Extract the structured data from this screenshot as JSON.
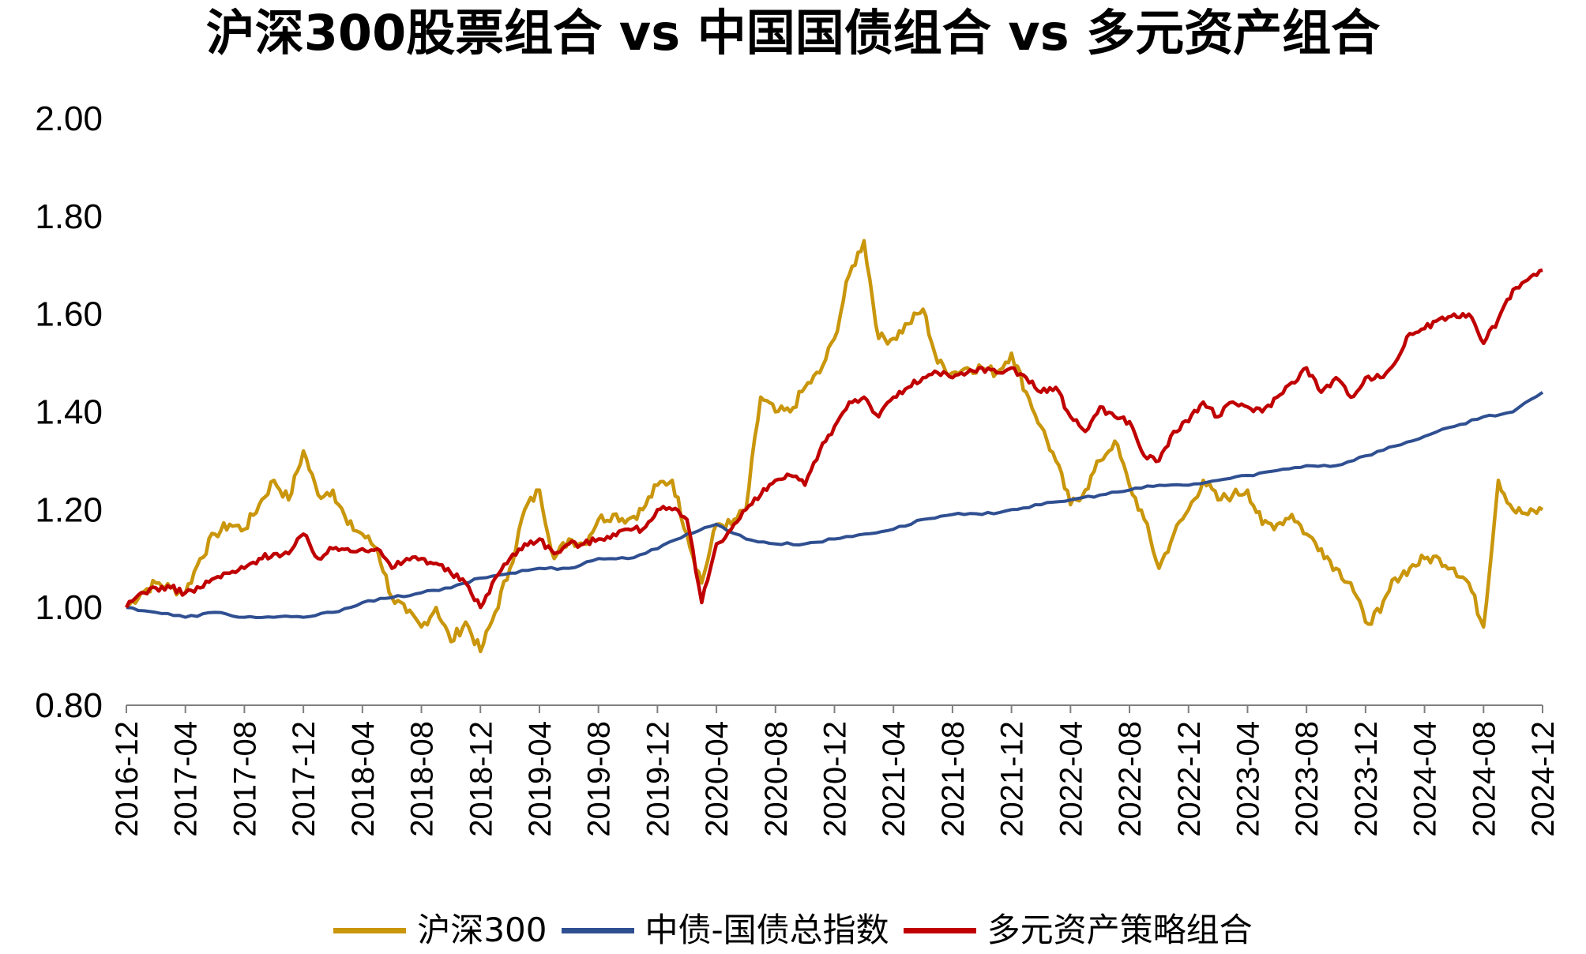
{
  "title": "沪深300股票组合 vs 中国国债组合 vs 多元资产组合",
  "chart_data": {
    "type": "line",
    "title": "沪深300股票组合 vs 中国国债组合 vs 多元资产组合",
    "xlabel": "",
    "ylabel": "",
    "ylim": [
      0.8,
      2.0
    ],
    "yticks": [
      "0.80",
      "1.00",
      "1.20",
      "1.40",
      "1.60",
      "1.80",
      "2.00"
    ],
    "x_ticks": [
      "2016-12",
      "2017-04",
      "2017-08",
      "2017-12",
      "2018-04",
      "2018-08",
      "2018-12",
      "2019-04",
      "2019-08",
      "2019-12",
      "2020-04",
      "2020-08",
      "2020-12",
      "2021-04",
      "2021-08",
      "2021-12",
      "2022-04",
      "2022-08",
      "2022-12",
      "2023-04",
      "2023-08",
      "2023-12",
      "2024-04",
      "2024-08",
      "2024-12"
    ],
    "grid": false,
    "legend_position": "bottom",
    "series": [
      {
        "name": "沪深300",
        "color": "#C9960C",
        "x": [
          "2016-12",
          "2017-01",
          "2017-02",
          "2017-03",
          "2017-04",
          "2017-05",
          "2017-06",
          "2017-07",
          "2017-08",
          "2017-09",
          "2017-10",
          "2017-11",
          "2017-12",
          "2018-01",
          "2018-02",
          "2018-03",
          "2018-04",
          "2018-05",
          "2018-06",
          "2018-07",
          "2018-08",
          "2018-09",
          "2018-10",
          "2018-11",
          "2018-12",
          "2019-01",
          "2019-02",
          "2019-03",
          "2019-04",
          "2019-05",
          "2019-06",
          "2019-07",
          "2019-08",
          "2019-09",
          "2019-10",
          "2019-11",
          "2019-12",
          "2020-01",
          "2020-02",
          "2020-03",
          "2020-04",
          "2020-05",
          "2020-06",
          "2020-07",
          "2020-08",
          "2020-09",
          "2020-10",
          "2020-11",
          "2020-12",
          "2021-01",
          "2021-02",
          "2021-03",
          "2021-04",
          "2021-05",
          "2021-06",
          "2021-07",
          "2021-08",
          "2021-09",
          "2021-10",
          "2021-11",
          "2021-12",
          "2022-01",
          "2022-02",
          "2022-03",
          "2022-04",
          "2022-05",
          "2022-06",
          "2022-07",
          "2022-08",
          "2022-09",
          "2022-10",
          "2022-11",
          "2022-12",
          "2023-01",
          "2023-02",
          "2023-03",
          "2023-04",
          "2023-05",
          "2023-06",
          "2023-07",
          "2023-08",
          "2023-09",
          "2023-10",
          "2023-11",
          "2023-12",
          "2024-01",
          "2024-02",
          "2024-03",
          "2024-04",
          "2024-05",
          "2024-06",
          "2024-07",
          "2024-08",
          "2024-09",
          "2024-10",
          "2024-11",
          "2024-12"
        ],
        "values": [
          1.0,
          1.03,
          1.05,
          1.04,
          1.03,
          1.1,
          1.15,
          1.17,
          1.16,
          1.21,
          1.26,
          1.22,
          1.32,
          1.23,
          1.24,
          1.17,
          1.15,
          1.12,
          1.02,
          0.99,
          0.96,
          1.0,
          0.93,
          0.97,
          0.91,
          0.99,
          1.08,
          1.2,
          1.24,
          1.1,
          1.14,
          1.13,
          1.18,
          1.19,
          1.18,
          1.2,
          1.25,
          1.26,
          1.15,
          1.05,
          1.17,
          1.17,
          1.2,
          1.43,
          1.4,
          1.4,
          1.45,
          1.48,
          1.55,
          1.68,
          1.75,
          1.55,
          1.55,
          1.58,
          1.61,
          1.5,
          1.48,
          1.49,
          1.49,
          1.48,
          1.52,
          1.44,
          1.37,
          1.3,
          1.21,
          1.24,
          1.3,
          1.34,
          1.25,
          1.18,
          1.08,
          1.15,
          1.2,
          1.26,
          1.22,
          1.23,
          1.24,
          1.17,
          1.17,
          1.19,
          1.15,
          1.12,
          1.08,
          1.05,
          0.97,
          0.99,
          1.06,
          1.08,
          1.1,
          1.1,
          1.08,
          1.05,
          0.96,
          1.26,
          1.2,
          1.19,
          1.2
        ]
      },
      {
        "name": "中债-国债总指数",
        "color": "#2F4F91",
        "x": [
          "2016-12",
          "2017-02",
          "2017-04",
          "2017-06",
          "2017-08",
          "2017-10",
          "2017-12",
          "2018-02",
          "2018-04",
          "2018-06",
          "2018-08",
          "2018-10",
          "2018-12",
          "2019-02",
          "2019-04",
          "2019-06",
          "2019-08",
          "2019-10",
          "2019-12",
          "2020-02",
          "2020-04",
          "2020-06",
          "2020-08",
          "2020-10",
          "2020-12",
          "2021-02",
          "2021-04",
          "2021-06",
          "2021-08",
          "2021-10",
          "2021-12",
          "2022-02",
          "2022-04",
          "2022-06",
          "2022-08",
          "2022-10",
          "2022-12",
          "2023-02",
          "2023-04",
          "2023-06",
          "2023-08",
          "2023-10",
          "2023-12",
          "2024-02",
          "2024-04",
          "2024-06",
          "2024-08",
          "2024-10",
          "2024-12"
        ],
        "values": [
          1.0,
          0.99,
          0.98,
          0.99,
          0.98,
          0.98,
          0.98,
          0.99,
          1.01,
          1.02,
          1.03,
          1.04,
          1.06,
          1.07,
          1.08,
          1.08,
          1.1,
          1.1,
          1.12,
          1.15,
          1.17,
          1.14,
          1.13,
          1.13,
          1.14,
          1.15,
          1.16,
          1.18,
          1.19,
          1.19,
          1.2,
          1.21,
          1.22,
          1.23,
          1.24,
          1.25,
          1.25,
          1.26,
          1.27,
          1.28,
          1.29,
          1.29,
          1.31,
          1.33,
          1.35,
          1.37,
          1.39,
          1.4,
          1.44
        ]
      },
      {
        "name": "多元资产策略组合",
        "color": "#C00000",
        "x": [
          "2016-12",
          "2017-01",
          "2017-02",
          "2017-03",
          "2017-04",
          "2017-05",
          "2017-06",
          "2017-07",
          "2017-08",
          "2017-09",
          "2017-10",
          "2017-11",
          "2017-12",
          "2018-01",
          "2018-02",
          "2018-03",
          "2018-04",
          "2018-05",
          "2018-06",
          "2018-07",
          "2018-08",
          "2018-09",
          "2018-10",
          "2018-11",
          "2018-12",
          "2019-01",
          "2019-02",
          "2019-03",
          "2019-04",
          "2019-05",
          "2019-06",
          "2019-07",
          "2019-08",
          "2019-09",
          "2019-10",
          "2019-11",
          "2019-12",
          "2020-01",
          "2020-02",
          "2020-03",
          "2020-04",
          "2020-05",
          "2020-06",
          "2020-07",
          "2020-08",
          "2020-09",
          "2020-10",
          "2020-11",
          "2020-12",
          "2021-01",
          "2021-02",
          "2021-03",
          "2021-04",
          "2021-05",
          "2021-06",
          "2021-07",
          "2021-08",
          "2021-09",
          "2021-10",
          "2021-11",
          "2021-12",
          "2022-01",
          "2022-02",
          "2022-03",
          "2022-04",
          "2022-05",
          "2022-06",
          "2022-07",
          "2022-08",
          "2022-09",
          "2022-10",
          "2022-11",
          "2022-12",
          "2023-01",
          "2023-02",
          "2023-03",
          "2023-04",
          "2023-05",
          "2023-06",
          "2023-07",
          "2023-08",
          "2023-09",
          "2023-10",
          "2023-11",
          "2023-12",
          "2024-01",
          "2024-02",
          "2024-03",
          "2024-04",
          "2024-05",
          "2024-06",
          "2024-07",
          "2024-08",
          "2024-09",
          "2024-10",
          "2024-11",
          "2024-12"
        ],
        "values": [
          1.0,
          1.03,
          1.04,
          1.04,
          1.03,
          1.04,
          1.06,
          1.07,
          1.08,
          1.1,
          1.11,
          1.11,
          1.15,
          1.1,
          1.12,
          1.12,
          1.12,
          1.12,
          1.08,
          1.1,
          1.1,
          1.09,
          1.07,
          1.05,
          1.0,
          1.06,
          1.1,
          1.13,
          1.14,
          1.11,
          1.13,
          1.13,
          1.14,
          1.15,
          1.16,
          1.16,
          1.2,
          1.2,
          1.18,
          1.01,
          1.13,
          1.16,
          1.2,
          1.23,
          1.26,
          1.27,
          1.25,
          1.32,
          1.37,
          1.42,
          1.43,
          1.39,
          1.43,
          1.45,
          1.47,
          1.48,
          1.47,
          1.48,
          1.49,
          1.48,
          1.49,
          1.47,
          1.44,
          1.45,
          1.39,
          1.36,
          1.41,
          1.39,
          1.38,
          1.31,
          1.3,
          1.36,
          1.38,
          1.42,
          1.39,
          1.42,
          1.41,
          1.4,
          1.43,
          1.46,
          1.49,
          1.44,
          1.47,
          1.43,
          1.47,
          1.47,
          1.5,
          1.56,
          1.57,
          1.59,
          1.6,
          1.6,
          1.54,
          1.59,
          1.65,
          1.67,
          1.69
        ]
      }
    ]
  }
}
